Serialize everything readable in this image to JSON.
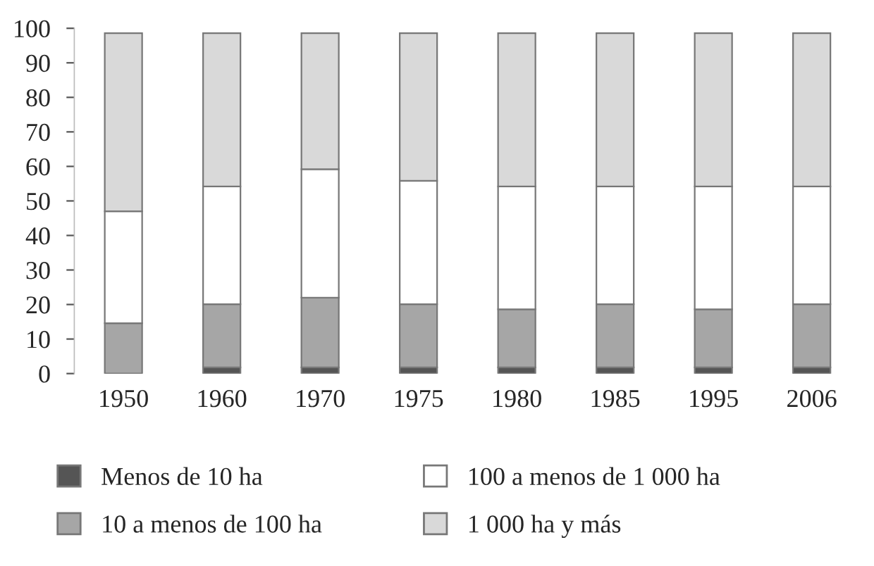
{
  "chart_data": {
    "type": "bar",
    "stacked": true,
    "categories": [
      "1950",
      "1960",
      "1970",
      "1975",
      "1980",
      "1985",
      "1995",
      "2006"
    ],
    "series": [
      {
        "name": "Menos de 10 ha",
        "color": "#555555",
        "values": [
          0,
          1.8,
          1.8,
          1.8,
          1.8,
          1.8,
          1.8,
          1.8
        ]
      },
      {
        "name": "10 a menos de 100 ha",
        "color": "#a6a6a6",
        "values": [
          14.6,
          18.3,
          20.2,
          18.3,
          16.8,
          18.3,
          16.8,
          18.3
        ]
      },
      {
        "name": "100 a menos de 1 000 ha",
        "color": "#ffffff",
        "values": [
          32.4,
          34.1,
          37.2,
          35.7,
          35.6,
          34.1,
          35.6,
          34.1
        ]
      },
      {
        "name": "1 000 ha y más",
        "color": "#d9d9d9",
        "values": [
          51.6,
          44.4,
          39.4,
          42.8,
          44.4,
          44.4,
          44.4,
          44.4
        ]
      }
    ],
    "ylim": [
      0,
      100
    ],
    "yticks": [
      0,
      10,
      20,
      30,
      40,
      50,
      60,
      70,
      80,
      90,
      100
    ],
    "grid": false,
    "legend": "bottom"
  }
}
